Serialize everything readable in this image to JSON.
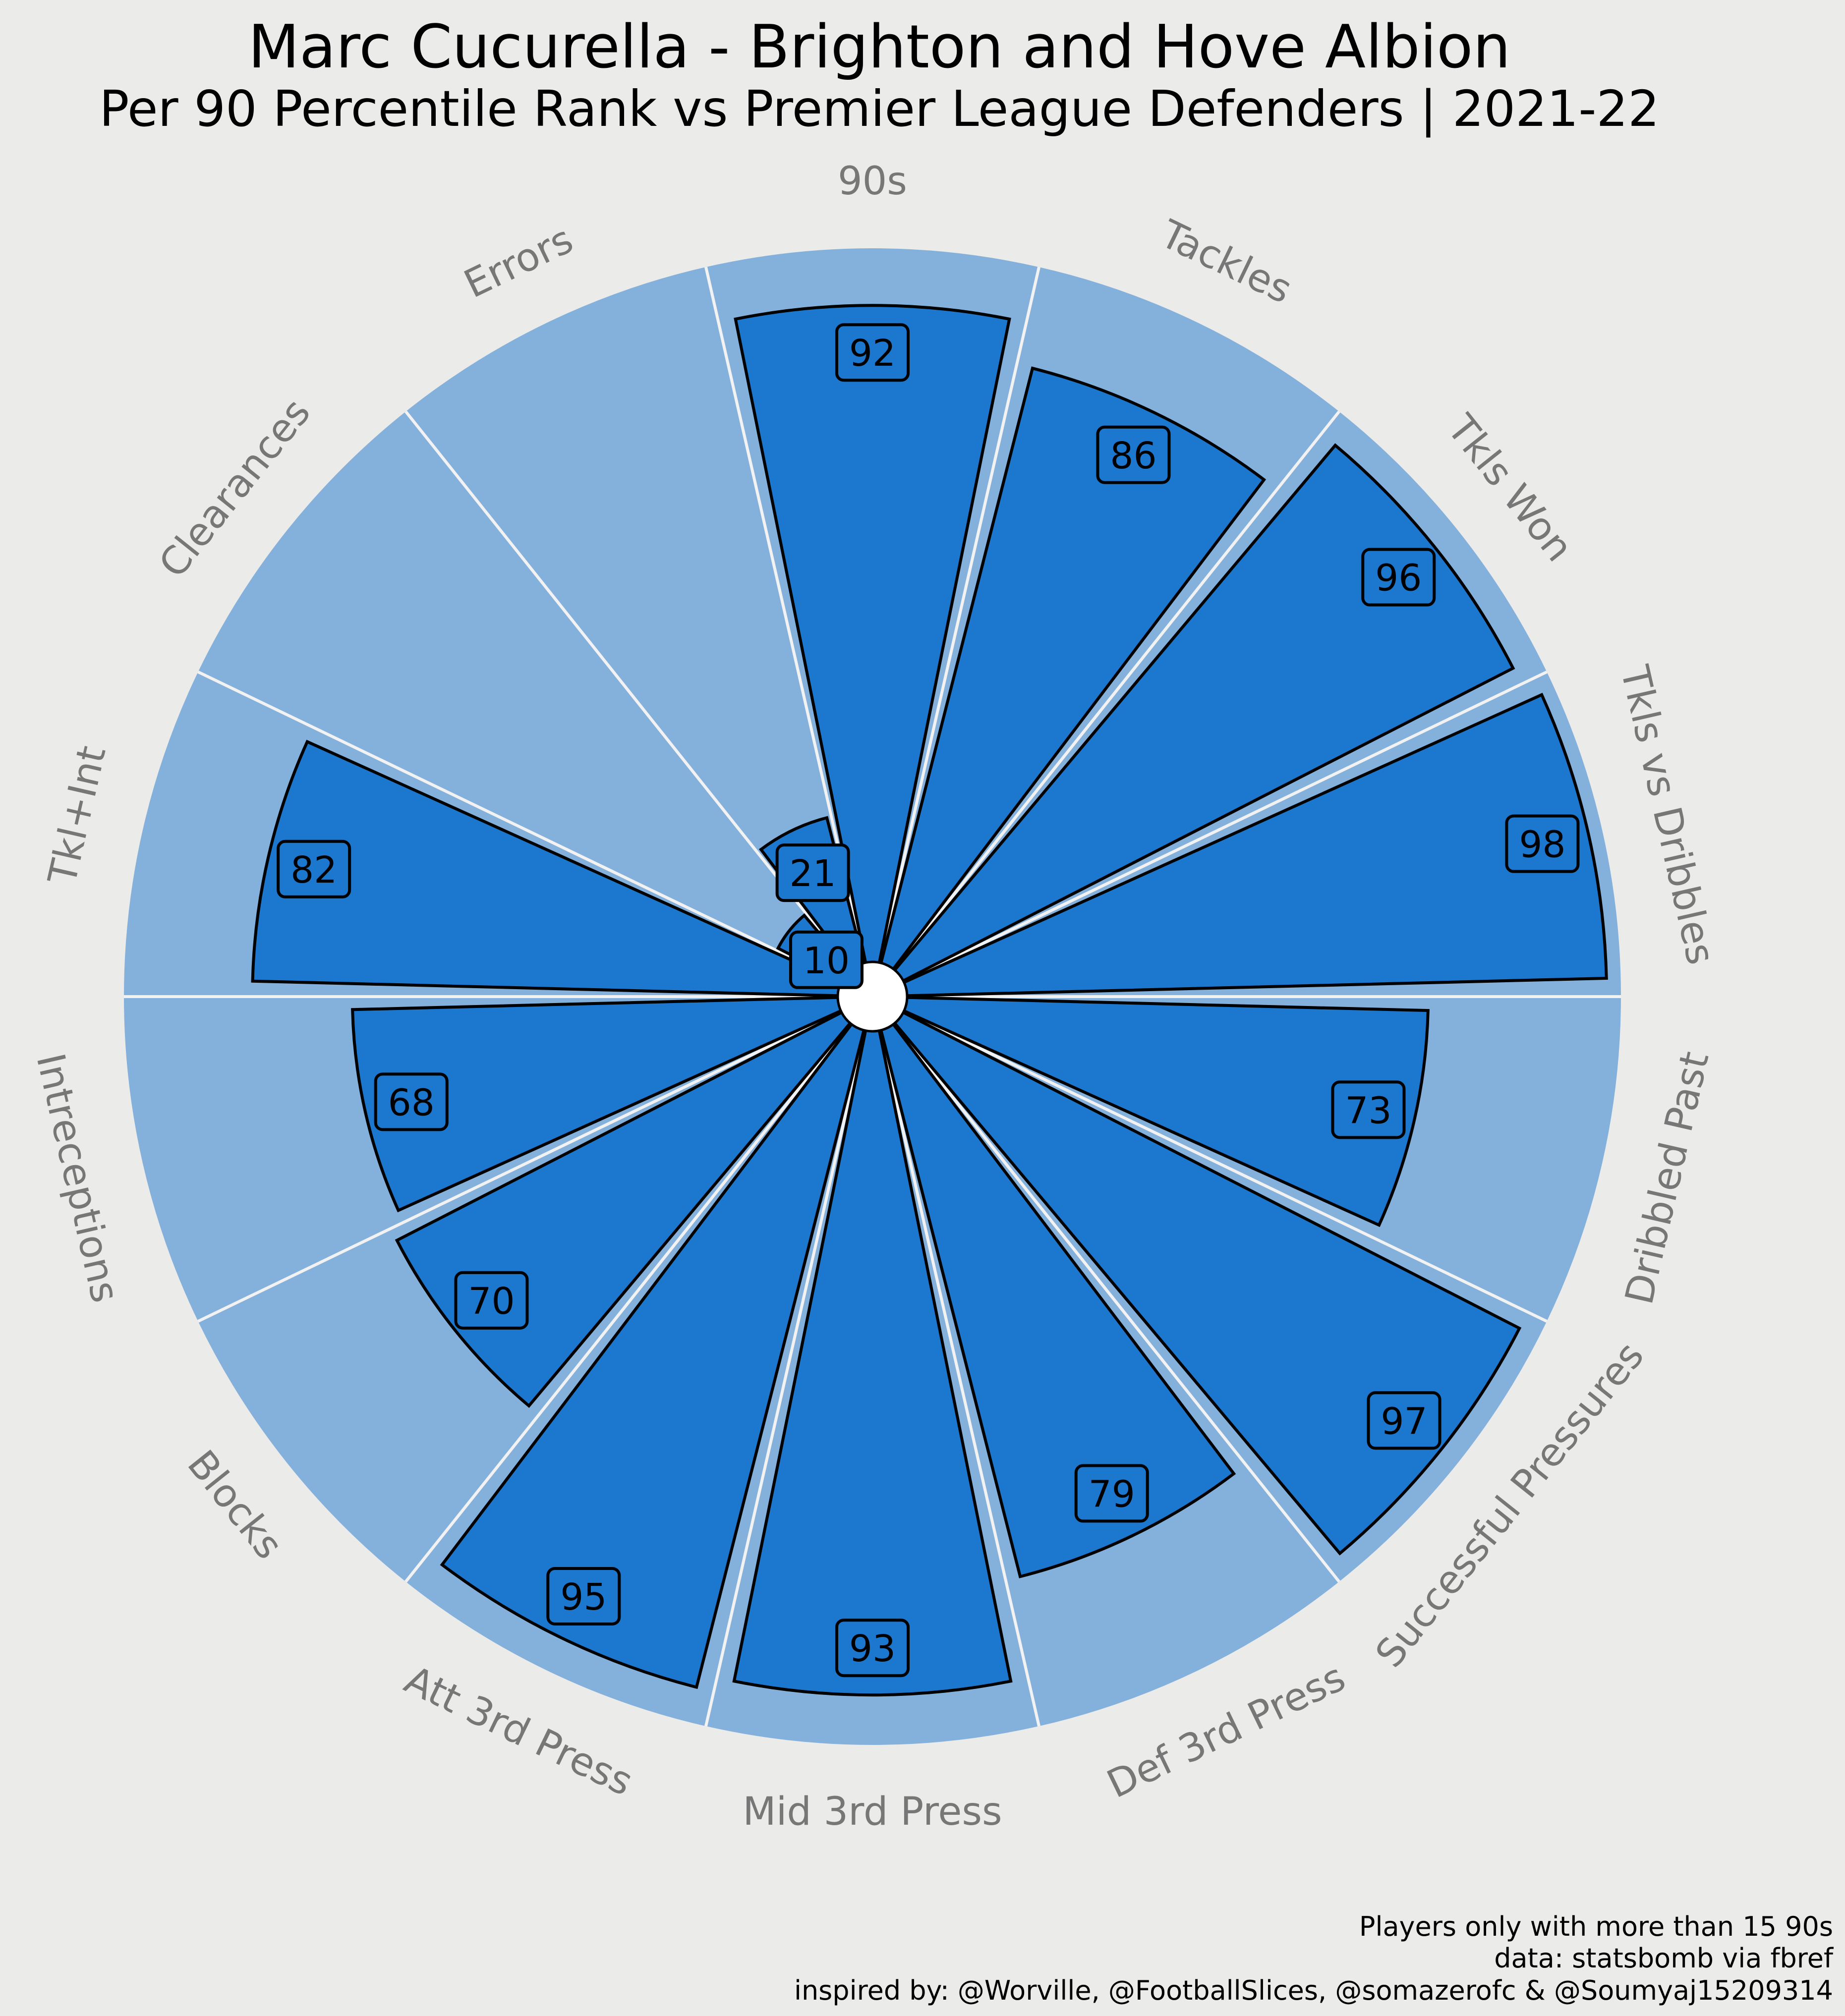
{
  "title": "Marc Cucurella - Brighton and Hove Albion",
  "subtitle": "Per 90 Percentile Rank vs Premier League Defenders | 2021-22",
  "footer": {
    "line1": "Players only with more than 15 90s",
    "line2": "data: statsbomb via fbref",
    "line3": "inspired by: @Worville, @FootballSlices, @somazerofc & @Soumyaj15209314"
  },
  "colors": {
    "background": "#ebebe9",
    "bar_fill": "#1c77cf",
    "bar_bg": "#84b0dc",
    "label_text": "#777777",
    "edge": "#000000"
  },
  "chart_data": {
    "type": "polar_bar",
    "range": [
      0,
      100
    ],
    "categories": [
      "90s",
      "Tackles",
      "Tkls Won",
      "Tkls vs Dribbles",
      "Dribbled Past",
      "Successful Pressures",
      "Def 3rd Press",
      "Mid 3rd Press",
      "Att 3rd Press",
      "Blocks",
      "Intreceptions",
      "Tkl+Int",
      "Clearances",
      "Errors"
    ],
    "values": [
      92,
      86,
      96,
      98,
      73,
      97,
      79,
      93,
      95,
      70,
      68,
      82,
      10,
      21
    ],
    "value_labels": [
      "92",
      "86",
      "96",
      "98",
      "73",
      "97",
      "79",
      "93",
      "95",
      "70",
      "68",
      "82",
      "10",
      "21"
    ]
  }
}
